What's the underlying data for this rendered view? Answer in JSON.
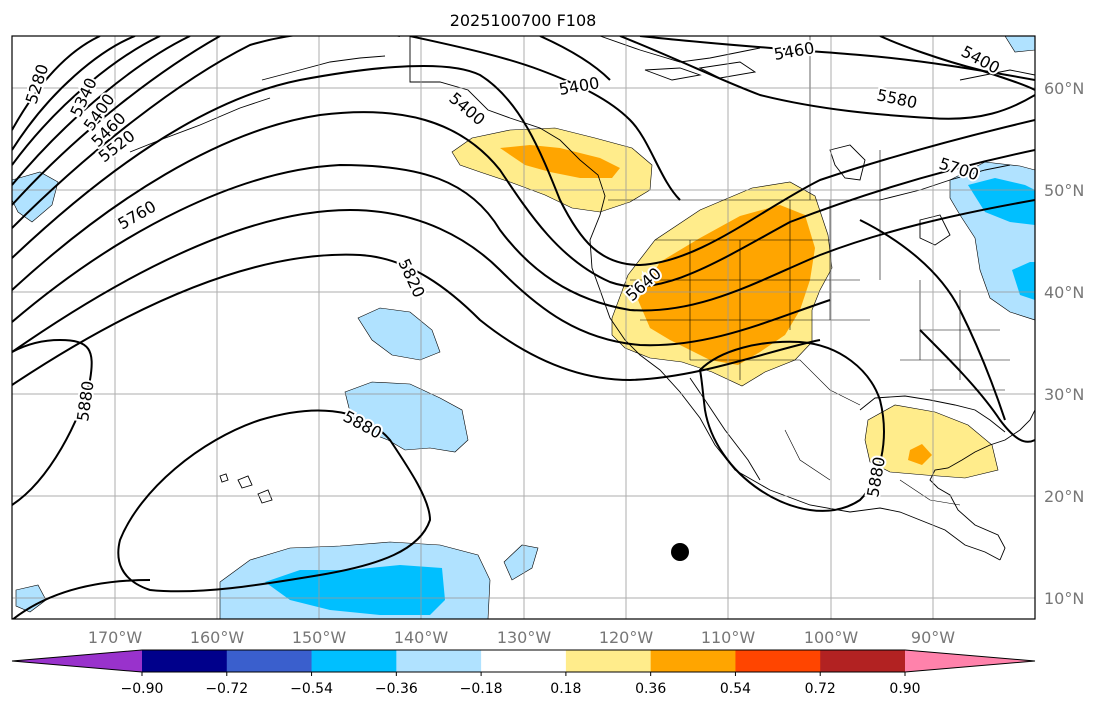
{
  "map": {
    "title": "2025100700 F108",
    "lon_labels": [
      "170°W",
      "160°W",
      "150°W",
      "140°W",
      "130°W",
      "120°W",
      "110°W",
      "100°W",
      "90°W"
    ],
    "lat_labels": [
      "60°N",
      "50°N",
      "40°N",
      "30°N",
      "20°N",
      "10°N"
    ],
    "contour_labels": [
      "5280",
      "5340",
      "5400",
      "5460",
      "5520",
      "5760",
      "5820",
      "5880",
      "5880",
      "5400",
      "5460",
      "5580",
      "5700",
      "5640",
      "5880",
      "5400",
      "5400"
    ],
    "marker": "black-dot"
  },
  "colorbar": {
    "tick_labels": [
      "−0.90",
      "−0.72",
      "−0.54",
      "−0.36",
      "−0.18",
      "0.18",
      "0.36",
      "0.54",
      "0.72",
      "0.90"
    ],
    "colors": [
      "#9932cc",
      "#00008b",
      "#3a5fcd",
      "#00bfff",
      "#b0e2ff",
      "#ffffff",
      "#ffec8b",
      "#ffa500",
      "#ff4500",
      "#b22222",
      "#ff82ab"
    ]
  }
}
